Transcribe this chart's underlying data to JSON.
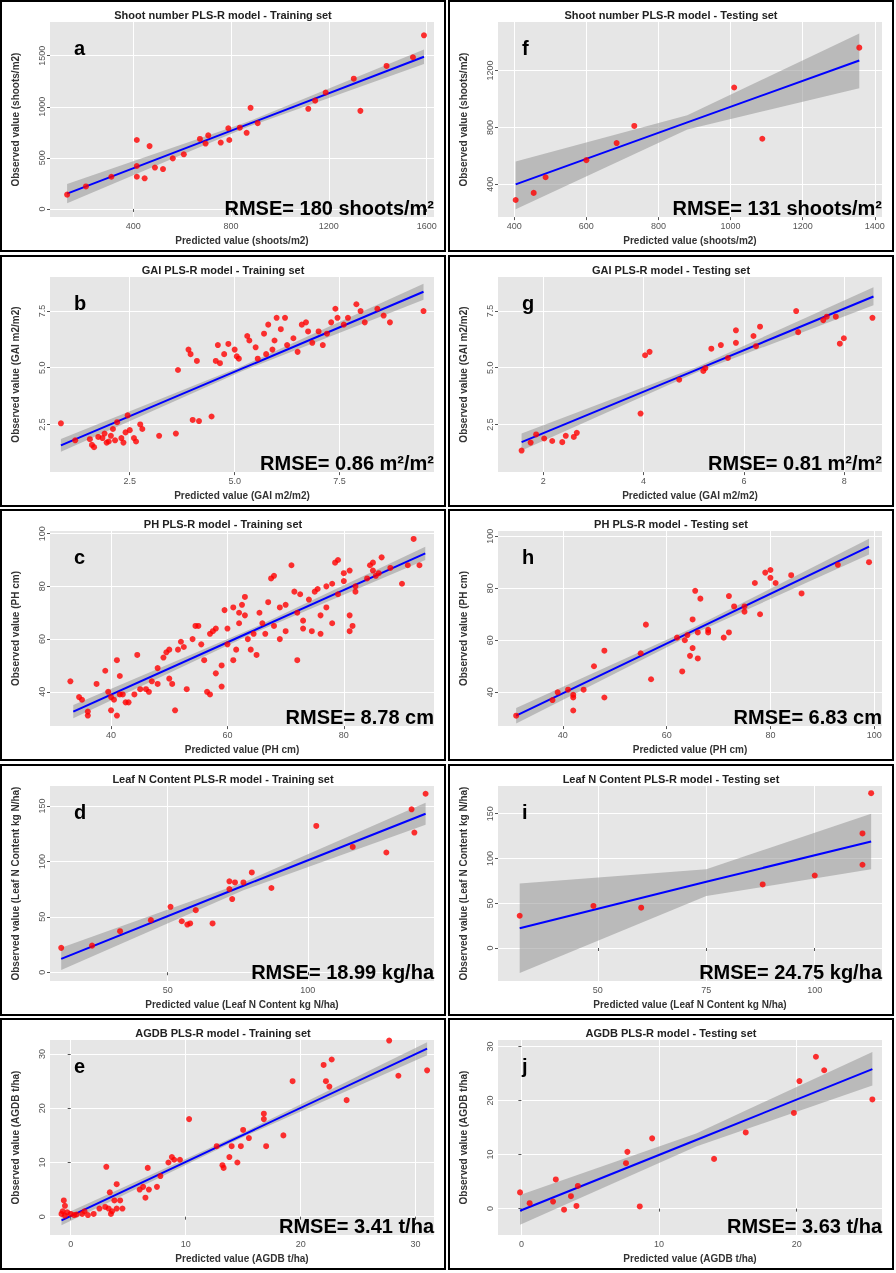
{
  "chart_data": [
    {
      "type": "scatter",
      "title": "Shoot number PLS-R model - Training set",
      "xlabel": "Predicted value (shoots/m2)",
      "ylabel": "Observed value (shoots/m2)",
      "annotations": [
        "a",
        "RMSE= 180 shoots/m²"
      ],
      "xlim": [
        60,
        1630
      ],
      "ylim": [
        -80,
        1830
      ],
      "xticks": [
        400,
        800,
        1200,
        1600
      ],
      "yticks": [
        0,
        500,
        1000,
        1500
      ],
      "grid": true,
      "series": [
        {
          "marker": "circle",
          "color": "#ff0000",
          "x": [
            130,
            207,
            311,
            415,
            415,
            415,
            447,
            467,
            489,
            522,
            562,
            607,
            673,
            696,
            707,
            758,
            789,
            793,
            836,
            864,
            880,
            909,
            1116,
            1144,
            1187,
            1329,
            1302,
            1436,
            1544,
            1589
          ],
          "values": [
            140,
            220,
            315,
            675,
            420,
            315,
            300,
            615,
            405,
            390,
            495,
            535,
            685,
            640,
            720,
            650,
            790,
            675,
            795,
            745,
            990,
            840,
            980,
            1060,
            1140,
            960,
            1275,
            1400,
            1485,
            1700
          ]
        },
        {
          "type": "line",
          "marker": "none",
          "color": "#0000ff",
          "x": [
            130,
            860,
            1589
          ],
          "values": [
            150,
            820,
            1490
          ],
          "lower": [
            55,
            795,
            1420
          ],
          "upper": [
            245,
            845,
            1560
          ]
        }
      ]
    },
    {
      "type": "scatter",
      "title": "Shoot number PLS-R model - Testing set",
      "xlabel": "Predicted value (shoots/m2)",
      "ylabel": "Observed value (shoots/m2)",
      "annotations": [
        "f",
        "RMSE= 131 shoots/m²"
      ],
      "xlim": [
        355,
        1420
      ],
      "ylim": [
        170,
        1540
      ],
      "xticks": [
        400,
        600,
        800,
        1000,
        1200,
        1400
      ],
      "yticks": [
        400,
        800,
        1200
      ],
      "grid": true,
      "series": [
        {
          "marker": "circle",
          "color": "#ff0000",
          "x": [
            404,
            454,
            487,
            600,
            684,
            733,
            1010,
            1088,
            1357
          ],
          "values": [
            290,
            340,
            450,
            570,
            690,
            810,
            1080,
            720,
            1360
          ]
        },
        {
          "type": "line",
          "marker": "none",
          "color": "#0000ff",
          "x": [
            404,
            880,
            1357
          ],
          "values": [
            400,
            835,
            1270
          ],
          "lower": [
            225,
            785,
            1075
          ],
          "upper": [
            560,
            885,
            1460
          ]
        }
      ]
    },
    {
      "type": "scatter",
      "title": "GAI PLS-R model - Training set",
      "xlabel": "Predicted value (GAI m2/m2)",
      "ylabel": "Observed value (GAI m2/m2)",
      "annotations": [
        "b",
        "RMSE= 0.86 m²/m²"
      ],
      "xlim": [
        0.6,
        9.75
      ],
      "ylim": [
        0.4,
        9.0
      ],
      "xticks": [
        2.5,
        {
          "value": 5,
          "label": "5.0"
        },
        7.5
      ],
      "yticks": [
        2.5,
        {
          "value": 5,
          "label": "5.0"
        },
        7.5
      ],
      "grid": true,
      "series": [
        {
          "marker": "circle",
          "color": "#ff0000",
          "x": [
            0.86,
            1.2,
            1.55,
            1.6,
            1.65,
            1.75,
            1.85,
            1.9,
            1.95,
            2.0,
            2.05,
            2.1,
            2.15,
            2.2,
            2.3,
            2.35,
            2.4,
            2.45,
            2.5,
            2.6,
            2.65,
            2.75,
            2.8,
            3.2,
            3.6,
            3.65,
            3.9,
            3.95,
            4.0,
            4.1,
            4.15,
            4.45,
            4.55,
            4.6,
            4.65,
            4.75,
            4.85,
            5.0,
            5.05,
            5.1,
            5.3,
            5.35,
            5.5,
            5.55,
            5.7,
            5.75,
            5.8,
            5.9,
            5.95,
            6.0,
            6.1,
            6.2,
            6.25,
            6.4,
            6.5,
            6.6,
            6.7,
            6.75,
            6.85,
            7.0,
            7.1,
            7.2,
            7.3,
            7.4,
            7.45,
            7.6,
            7.7,
            7.9,
            8.0,
            8.1,
            8.4,
            8.55,
            8.7,
            9.5
          ],
          "values": [
            2.55,
            1.8,
            1.85,
            1.6,
            1.5,
            1.95,
            1.9,
            2.1,
            1.7,
            1.75,
            2.0,
            2.3,
            1.8,
            2.6,
            1.9,
            1.7,
            2.15,
            2.9,
            2.25,
            1.9,
            1.75,
            2.5,
            2.3,
            2.0,
            2.1,
            4.9,
            5.8,
            5.6,
            2.7,
            5.3,
            2.65,
            2.85,
            5.3,
            6.0,
            5.2,
            5.6,
            6.05,
            5.8,
            5.5,
            5.4,
            6.4,
            6.2,
            5.9,
            5.4,
            6.5,
            5.6,
            6.9,
            5.8,
            6.2,
            7.2,
            6.7,
            7.2,
            6.0,
            6.3,
            5.7,
            6.9,
            7.0,
            6.6,
            6.1,
            6.6,
            6.0,
            6.5,
            7.0,
            7.6,
            7.2,
            6.9,
            7.2,
            7.8,
            7.5,
            7.0,
            7.6,
            7.3,
            7.0,
            7.5
          ]
        },
        {
          "type": "line",
          "marker": "none",
          "color": "#0000ff",
          "x": [
            0.86,
            5.2,
            9.5
          ],
          "values": [
            1.58,
            4.98,
            8.35
          ],
          "lower": [
            1.3,
            4.87,
            8.0
          ],
          "upper": [
            1.86,
            5.09,
            8.7
          ]
        }
      ]
    },
    {
      "type": "scatter",
      "title": "GAI PLS-R model - Testing set",
      "xlabel": "Predicted value (GAI m2/m2)",
      "ylabel": "Observed value (GAI m2/m2)",
      "annotations": [
        "g",
        "RMSE= 0.81 m²/m²"
      ],
      "xlim": [
        1.1,
        8.75
      ],
      "ylim": [
        0.4,
        9.0
      ],
      "xticks": [
        2,
        4,
        6,
        8
      ],
      "yticks": [
        2.5,
        {
          "value": 5,
          "label": "5.0"
        },
        7.5
      ],
      "grid": true,
      "series": [
        {
          "marker": "circle",
          "color": "#ff0000",
          "x": [
            1.57,
            1.75,
            1.86,
            2.02,
            2.18,
            2.38,
            2.45,
            2.61,
            2.67,
            3.94,
            4.03,
            4.12,
            4.71,
            5.19,
            5.23,
            5.35,
            5.54,
            5.68,
            5.84,
            5.84,
            6.19,
            6.24,
            6.32,
            7.04,
            7.08,
            7.58,
            7.65,
            7.83,
            7.91,
            7.99,
            8.56
          ],
          "values": [
            1.35,
            1.7,
            2.06,
            1.88,
            1.77,
            1.72,
            2.0,
            1.95,
            2.13,
            2.98,
            5.55,
            5.7,
            4.47,
            4.86,
            4.98,
            5.84,
            6.0,
            5.43,
            6.1,
            6.65,
            6.4,
            5.95,
            6.81,
            7.5,
            6.57,
            7.1,
            7.25,
            7.25,
            6.06,
            6.3,
            7.2
          ]
        },
        {
          "type": "line",
          "marker": "none",
          "color": "#0000ff",
          "x": [
            1.57,
            5.1,
            8.58
          ],
          "values": [
            1.72,
            4.95,
            8.14
          ],
          "lower": [
            1.35,
            4.83,
            7.75
          ],
          "upper": [
            2.1,
            5.07,
            8.55
          ]
        }
      ]
    },
    {
      "type": "scatter",
      "title": "PH PLS-R model - Training set",
      "xlabel": "Predicted value (PH cm)",
      "ylabel": "Observed value (PH cm)",
      "annotations": [
        "c",
        "RMSE= 8.78 cm"
      ],
      "xlim": [
        29.5,
        95.5
      ],
      "ylim": [
        27,
        101
      ],
      "xticks": [
        40,
        60,
        80
      ],
      "yticks": [
        40,
        60,
        80,
        100
      ],
      "grid": true,
      "series": [
        {
          "marker": "circle",
          "color": "#ff0000",
          "x": [
            33,
            34.5,
            35,
            36,
            36,
            37.5,
            39,
            39.5,
            40,
            40,
            40.5,
            41,
            41,
            41.5,
            41.5,
            42,
            42.5,
            43,
            44,
            44.5,
            45,
            46,
            46.5,
            47,
            48,
            48,
            49,
            49.5,
            50,
            50,
            50.5,
            51,
            51.5,
            52,
            52.5,
            53,
            54,
            54.5,
            55,
            55.5,
            56,
            56.5,
            57,
            57,
            57.5,
            58,
            58,
            59,
            59,
            59.5,
            60,
            60,
            61,
            61,
            61.5,
            62,
            62,
            62.5,
            63,
            63,
            63.5,
            64,
            64.5,
            65,
            65.5,
            66,
            66.5,
            67,
            67.5,
            68,
            68,
            69,
            69,
            70,
            70,
            71,
            71.5,
            72,
            72,
            72.5,
            73,
            73,
            74,
            74.5,
            75,
            75.5,
            76,
            76,
            77,
            77,
            78,
            78,
            78.5,
            79,
            79,
            80,
            80,
            81,
            81,
            81,
            81.5,
            82,
            82,
            84,
            84.5,
            85,
            85,
            85.5,
            86,
            86.5,
            88,
            90,
            91,
            92,
            93
          ],
          "values": [
            44,
            38,
            37,
            31,
            32.5,
            43,
            48,
            40,
            38,
            33,
            37,
            52,
            31,
            46,
            39,
            39,
            36,
            36,
            39,
            54,
            41,
            41,
            40,
            44,
            43,
            49,
            53,
            55,
            45,
            56,
            43,
            33,
            56,
            59,
            57,
            41,
            60,
            65,
            65,
            58,
            52,
            40,
            39,
            62,
            63,
            47,
            64,
            50,
            42,
            71,
            64,
            58,
            52,
            72,
            56,
            66,
            70,
            73,
            76,
            69,
            60,
            56,
            62,
            54,
            70,
            66,
            62,
            74,
            83,
            84,
            65,
            72,
            60,
            73,
            63,
            88,
            78,
            70,
            52,
            77,
            64,
            67,
            75,
            63,
            78,
            79,
            69,
            62,
            80,
            72,
            81,
            66,
            89,
            77,
            90,
            85,
            82,
            86,
            69,
            63,
            65,
            80,
            78,
            83,
            88,
            89,
            86,
            84,
            85,
            91,
            87,
            81,
            88,
            98,
            88
          ]
        },
        {
          "type": "line",
          "marker": "none",
          "color": "#0000ff",
          "x": [
            33.5,
            63.75,
            94
          ],
          "values": [
            32.5,
            62.5,
            92.5
          ],
          "lower": [
            30,
            61.5,
            90
          ],
          "upper": [
            35,
            63.5,
            95
          ]
        }
      ]
    },
    {
      "type": "scatter",
      "title": "PH PLS-R model - Testing set",
      "xlabel": "Predicted value (PH cm)",
      "ylabel": "Observed value (PH cm)",
      "annotations": [
        "h",
        "RMSE= 6.83 cm"
      ],
      "xlim": [
        27.5,
        101.5
      ],
      "ylim": [
        27,
        102
      ],
      "xticks": [
        40,
        60,
        80,
        100
      ],
      "yticks": [
        40,
        60,
        80,
        100
      ],
      "grid": true,
      "series": [
        {
          "marker": "circle",
          "color": "#ff0000",
          "x": [
            31,
            38,
            39,
            41,
            42,
            42,
            42,
            44,
            46,
            48,
            48,
            55,
            56,
            57,
            62,
            63,
            63.5,
            64,
            64.5,
            65,
            65,
            65.5,
            66,
            66,
            66.5,
            68,
            68,
            71,
            72,
            72,
            73,
            75,
            75,
            77,
            78,
            79,
            80,
            80,
            81,
            84,
            86,
            93,
            99
          ],
          "values": [
            31,
            37,
            40,
            41,
            39,
            33,
            38,
            41,
            50,
            56,
            38,
            55,
            66,
            45,
            61,
            48,
            60,
            62,
            54,
            57,
            68,
            79,
            63,
            53,
            76,
            64,
            63,
            61,
            77,
            63,
            73,
            73,
            71,
            82,
            70,
            86,
            84,
            87,
            82,
            85,
            78,
            89,
            90
          ]
        },
        {
          "type": "line",
          "marker": "none",
          "color": "#0000ff",
          "x": [
            31,
            65,
            99
          ],
          "values": [
            31,
            63.5,
            96
          ],
          "lower": [
            28,
            62.3,
            93
          ],
          "upper": [
            34,
            64.7,
            99
          ]
        }
      ]
    },
    {
      "type": "scatter",
      "title": "Leaf N Content PLS-R model - Training set",
      "xlabel": "Predicted value (Leaf N Content kg N/ha)",
      "ylabel": "Observed value (Leaf N Content kg N/ha)",
      "annotations": [
        "d",
        "RMSE= 18.99 kg/ha"
      ],
      "xlim": [
        8,
        145
      ],
      "ylim": [
        -8,
        168
      ],
      "xticks": [
        50,
        100
      ],
      "yticks": [
        0,
        50,
        100,
        150
      ],
      "grid": true,
      "series": [
        {
          "marker": "circle",
          "color": "#ff0000",
          "x": [
            12,
            23,
            33,
            44,
            51,
            55,
            57,
            58,
            60,
            66,
            72,
            72,
            73,
            74,
            77,
            80,
            87,
            103,
            116,
            128,
            137,
            138,
            142
          ],
          "values": [
            22,
            24,
            37,
            47,
            59,
            46,
            43,
            44,
            56,
            44,
            82,
            75,
            66,
            81,
            81,
            90,
            76,
            132,
            113,
            108,
            147,
            126,
            161
          ]
        },
        {
          "type": "line",
          "marker": "none",
          "color": "#0000ff",
          "x": [
            12,
            77,
            142
          ],
          "values": [
            12,
            78,
            143
          ],
          "lower": [
            2,
            74,
            133
          ],
          "upper": [
            22,
            81,
            153
          ]
        }
      ]
    },
    {
      "type": "scatter",
      "title": "Leaf N Content PLS-R model - Testing set",
      "xlabel": "Predicted value (Leaf N Content kg N/ha)",
      "ylabel": "Observed value (Leaf N Content kg N/ha)",
      "annotations": [
        "i",
        "RMSE= 24.75 kg/ha"
      ],
      "xlim": [
        27,
        115.5
      ],
      "ylim": [
        -37,
        181
      ],
      "xticks": [
        50,
        75,
        100
      ],
      "yticks": [
        0,
        50,
        100,
        150
      ],
      "grid": true,
      "series": [
        {
          "marker": "circle",
          "color": "#ff0000",
          "x": [
            32,
            49,
            60,
            88,
            100,
            111,
            111,
            113
          ],
          "values": [
            36,
            47,
            45,
            71,
            81,
            128,
            93,
            173
          ]
        },
        {
          "type": "line",
          "marker": "none",
          "color": "#0000ff",
          "x": [
            32,
            75,
            113
          ],
          "values": [
            22,
            74,
            119
          ],
          "lower": [
            -28,
            58,
            88
          ],
          "upper": [
            72,
            88,
            150
          ]
        }
      ]
    },
    {
      "type": "scatter",
      "title": "AGDB PLS-R model - Training set",
      "xlabel": "Predicted value (AGDB t/ha)",
      "ylabel": "Observed value (AGDB t/ha)",
      "annotations": [
        "e",
        "RMSE= 3.41 t/ha"
      ],
      "xlim": [
        -1.8,
        31.6
      ],
      "ylim": [
        -3.4,
        32.6
      ],
      "xticks": [
        0,
        10,
        20,
        30
      ],
      "yticks": [
        0,
        10,
        20,
        30
      ],
      "grid": true,
      "series": [
        {
          "marker": "circle",
          "color": "#ff0000",
          "x": [
            -0.8,
            -0.7,
            -0.6,
            -0.5,
            -0.5,
            -0.3,
            0,
            0.3,
            0.5,
            1,
            1.2,
            1.5,
            2,
            2.5,
            3,
            3.1,
            3.3,
            3.4,
            3.5,
            3.6,
            3.8,
            4,
            4,
            4.3,
            4.5,
            6,
            6.3,
            6.5,
            6.7,
            6.8,
            7.5,
            7.8,
            8.5,
            8.8,
            9,
            9.5,
            10.3,
            12.7,
            13.2,
            13.3,
            13.8,
            14,
            14.5,
            14.8,
            15,
            15.5,
            16.8,
            16.8,
            17,
            18.5,
            19.3,
            22,
            22.2,
            22.5,
            22.7,
            24,
            27.7,
            28.5,
            31
          ],
          "values": [
            0.5,
            1,
            3,
            2,
            0.2,
            0.8,
            0.5,
            0.3,
            0.4,
            0.5,
            1,
            0.3,
            0.5,
            1.5,
            1.8,
            9.2,
            1.5,
            4.5,
            0.5,
            1,
            3,
            1.5,
            6,
            3,
            1.5,
            5,
            5.5,
            3.5,
            9,
            5,
            5.5,
            7.5,
            10,
            11,
            10.5,
            10.5,
            18,
            13,
            9.5,
            9,
            11,
            13,
            10,
            13,
            16,
            14.5,
            19,
            18,
            13,
            15,
            25,
            28,
            25,
            24,
            29,
            21.5,
            32.5,
            26,
            27
          ]
        },
        {
          "type": "line",
          "marker": "none",
          "color": "#0000ff",
          "x": [
            -0.8,
            15.1,
            31
          ],
          "values": [
            -0.7,
            15.2,
            31
          ],
          "lower": [
            -1.6,
            14.8,
            29.8
          ],
          "upper": [
            0.2,
            15.6,
            32.2
          ]
        }
      ]
    },
    {
      "type": "scatter",
      "title": "AGDB PLS-R model - Testing set",
      "xlabel": "Predicted value (AGDB t/ha)",
      "ylabel": "Observed value (AGDB t/ha)",
      "annotations": [
        "j",
        "RMSE= 3.63 t/ha"
      ],
      "xlim": [
        -1.7,
        26.2
      ],
      "ylim": [
        -4.9,
        31.2
      ],
      "xticks": [
        0,
        10,
        20
      ],
      "yticks": [
        0,
        10,
        20,
        30
      ],
      "grid": true,
      "series": [
        {
          "marker": "circle",
          "color": "#ff0000",
          "x": [
            -0.1,
            0.6,
            2.5,
            2.3,
            3.1,
            3.6,
            4.0,
            4.1,
            7.6,
            7.7,
            8.6,
            9.5,
            14.0,
            16.3,
            19.8,
            20.2,
            21.4,
            22,
            25.5
          ],
          "values": [
            3.0,
            1.0,
            5.4,
            1.3,
            -0.2,
            2.3,
            0.5,
            4.2,
            8.4,
            10.5,
            0.4,
            13.0,
            9.2,
            14.1,
            17.7,
            23.6,
            28.1,
            25.6,
            20.2
          ]
        },
        {
          "type": "line",
          "marker": "none",
          "color": "#0000ff",
          "x": [
            -0.1,
            12.7,
            25.5
          ],
          "values": [
            -0.4,
            12.7,
            25.8
          ],
          "lower": [
            -3,
            11.5,
            22.8
          ],
          "upper": [
            2.5,
            13.9,
            29
          ]
        }
      ]
    }
  ]
}
